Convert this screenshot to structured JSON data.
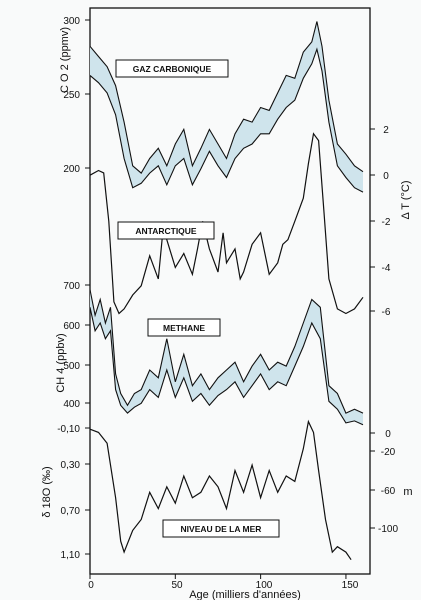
{
  "chart_data": [
    {
      "type": "area",
      "label": "GAZ CARBONIQUE",
      "ylabel_left": "C O 2 (ppmv)",
      "yticks_left": [
        "300",
        "250",
        "200"
      ],
      "ylim_left": [
        180,
        300
      ],
      "x": [
        0,
        5,
        10,
        15,
        20,
        25,
        30,
        35,
        40,
        45,
        50,
        55,
        60,
        65,
        70,
        75,
        80,
        85,
        90,
        95,
        100,
        105,
        110,
        115,
        120,
        125,
        130,
        133,
        136,
        140,
        145,
        150,
        155,
        160
      ],
      "series": [
        {
          "values": [
            282,
            275,
            268,
            255,
            230,
            200,
            195,
            205,
            212,
            200,
            215,
            225,
            200,
            212,
            225,
            215,
            205,
            222,
            232,
            230,
            240,
            238,
            250,
            262,
            260,
            278,
            285,
            299,
            282,
            245,
            215,
            208,
            200,
            196
          ]
        },
        {
          "values": [
            262,
            257,
            250,
            235,
            205,
            185,
            188,
            195,
            200,
            187,
            200,
            205,
            187,
            198,
            210,
            200,
            192,
            205,
            212,
            215,
            222,
            222,
            232,
            240,
            245,
            260,
            270,
            280,
            265,
            230,
            200,
            192,
            185,
            182
          ]
        }
      ]
    },
    {
      "type": "line",
      "label": "ANTARCTIQUE",
      "ylabel_right": "Δ T (°C)",
      "yticks_right": [
        "2",
        "0",
        "-2",
        "-4",
        "-6"
      ],
      "ylim": [
        -6.5,
        3
      ],
      "x": [
        0,
        5,
        8,
        11,
        14,
        17,
        20,
        25,
        30,
        35,
        40,
        43,
        45,
        50,
        55,
        60,
        63,
        66,
        70,
        75,
        78,
        80,
        85,
        88,
        90,
        95,
        100,
        105,
        110,
        113,
        116,
        120,
        125,
        128,
        131,
        134,
        137,
        140,
        145,
        150,
        155,
        160
      ],
      "values": [
        0,
        0.2,
        0.1,
        -2,
        -5.5,
        -6,
        -5.8,
        -5.2,
        -4.8,
        -3.5,
        -4.5,
        -2.2,
        -2.8,
        -4,
        -3.4,
        -4.3,
        -3.2,
        -2,
        -3.2,
        -4.2,
        -2.5,
        -3.8,
        -3.2,
        -4.5,
        -4.2,
        -3,
        -2.5,
        -4.3,
        -3.8,
        -3,
        -2.8,
        -2,
        -1,
        0.5,
        1.8,
        1.5,
        -1.5,
        -4.5,
        -5.8,
        -6,
        -5.8,
        -5.3
      ]
    },
    {
      "type": "area",
      "label": "METHANE",
      "ylabel_left": "CH 4 (ppbv)",
      "yticks_left": [
        "700",
        "600",
        "500",
        "400"
      ],
      "ylim_left": [
        360,
        720
      ],
      "x": [
        0,
        3,
        6,
        9,
        12,
        15,
        18,
        22,
        26,
        30,
        35,
        40,
        45,
        50,
        55,
        60,
        65,
        70,
        75,
        80,
        85,
        90,
        95,
        100,
        105,
        110,
        115,
        120,
        125,
        130,
        135,
        140,
        145,
        150,
        155,
        160
      ],
      "series": [
        {
          "values": [
            685,
            620,
            660,
            600,
            640,
            470,
            420,
            390,
            420,
            430,
            480,
            460,
            560,
            450,
            520,
            440,
            470,
            430,
            460,
            480,
            500,
            450,
            490,
            520,
            480,
            500,
            490,
            540,
            600,
            660,
            640,
            440,
            420,
            370,
            380,
            370
          ]
        },
        {
          "values": [
            640,
            580,
            600,
            560,
            580,
            430,
            390,
            370,
            385,
            395,
            430,
            410,
            480,
            410,
            460,
            400,
            420,
            390,
            415,
            430,
            450,
            410,
            440,
            470,
            430,
            450,
            440,
            490,
            540,
            600,
            560,
            400,
            380,
            345,
            350,
            340
          ]
        }
      ]
    },
    {
      "type": "line",
      "label": "NIVEAU DE LA MER",
      "ylabel_left": "δ 18O (‰)",
      "ylabel_right": "m",
      "yticks_left": [
        "-0,10",
        "0,30",
        "0,70",
        "1,10"
      ],
      "yticks_right": [
        "0",
        "-20",
        "-60",
        "-100"
      ],
      "ylim_left": [
        -0.1,
        1.15
      ],
      "x": [
        0,
        5,
        10,
        15,
        18,
        20,
        25,
        30,
        35,
        40,
        45,
        50,
        55,
        60,
        65,
        70,
        75,
        80,
        85,
        90,
        95,
        100,
        105,
        110,
        115,
        120,
        125,
        128,
        131,
        134,
        138,
        142,
        145,
        150,
        153
      ],
      "values": [
        -0.08,
        -0.05,
        0.05,
        0.55,
        0.95,
        1.05,
        0.85,
        0.75,
        0.5,
        0.65,
        0.45,
        0.6,
        0.35,
        0.55,
        0.5,
        0.35,
        0.45,
        0.65,
        0.3,
        0.5,
        0.25,
        0.55,
        0.3,
        0.5,
        0.35,
        0.4,
        0.1,
        -0.15,
        -0.05,
        0.3,
        0.75,
        1.05,
        1.0,
        1.05,
        1.12
      ]
    }
  ],
  "x_axis": {
    "ticks": [
      "0",
      "50",
      "100",
      "150"
    ],
    "xlim": [
      0,
      160
    ],
    "xlabel": "Age (milliers d'années)"
  },
  "colors": {
    "line": "#111111",
    "fill": "#cfe4ec",
    "background": "#f9fafa"
  }
}
